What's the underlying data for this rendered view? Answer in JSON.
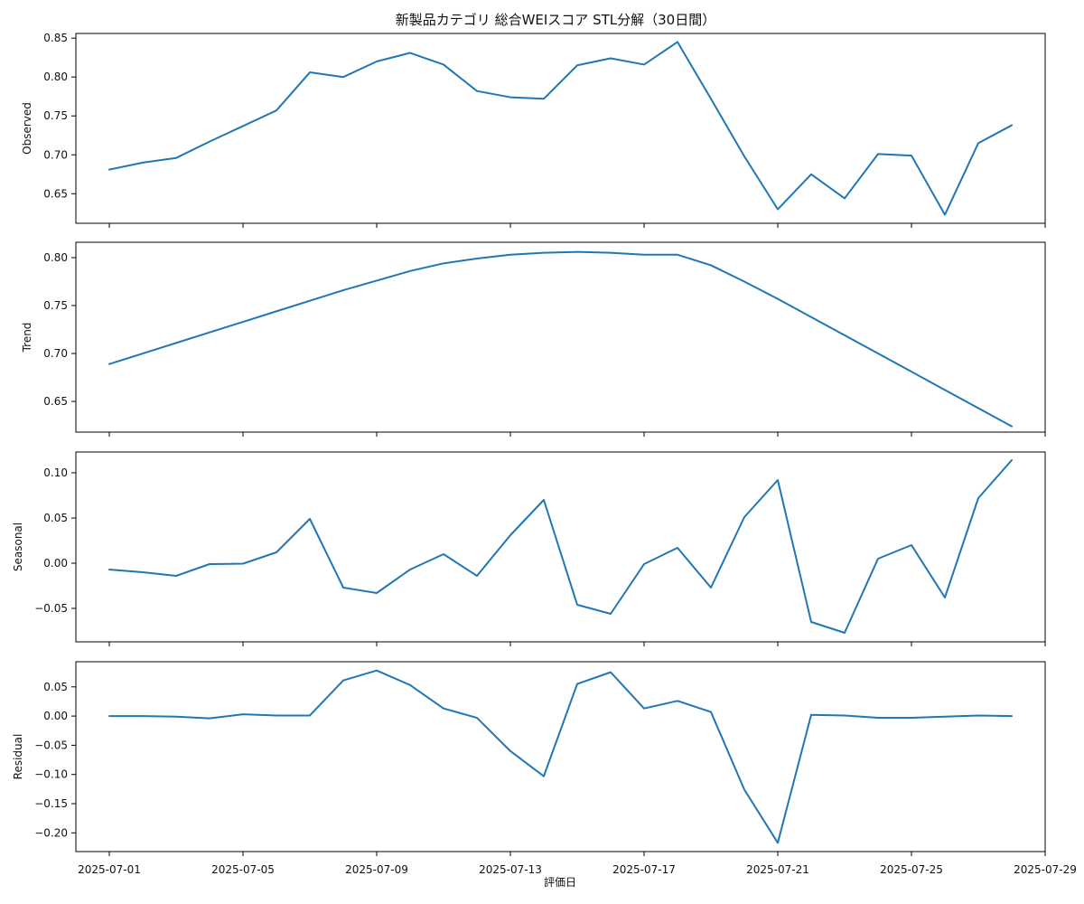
{
  "figure": {
    "title": "新製品カテゴリ 総合WEIスコア STL分解（30日間）",
    "xlabel": "評価日",
    "line_color": "#1f77b4",
    "x_ticks": [
      "2025-07-01",
      "2025-07-05",
      "2025-07-09",
      "2025-07-13",
      "2025-07-17",
      "2025-07-21",
      "2025-07-25",
      "2025-07-29"
    ]
  },
  "chart_data": [
    {
      "type": "line",
      "title": "",
      "xlabel": "評価日",
      "ylabel": "Observed",
      "xlim": [
        "2025-06-30",
        "2025-07-29"
      ],
      "ylim": [
        0.612,
        0.856
      ],
      "x_ticks": [
        "2025-07-01",
        "2025-07-05",
        "2025-07-09",
        "2025-07-13",
        "2025-07-17",
        "2025-07-21",
        "2025-07-25",
        "2025-07-29"
      ],
      "y_ticks": [
        "0.65",
        "0.70",
        "0.75",
        "0.80",
        "0.85"
      ],
      "grid": false,
      "x": [
        "2025-07-01",
        "2025-07-02",
        "2025-07-03",
        "2025-07-04",
        "2025-07-05",
        "2025-07-06",
        "2025-07-07",
        "2025-07-08",
        "2025-07-09",
        "2025-07-10",
        "2025-07-11",
        "2025-07-12",
        "2025-07-13",
        "2025-07-14",
        "2025-07-15",
        "2025-07-16",
        "2025-07-17",
        "2025-07-18",
        "2025-07-19",
        "2025-07-20",
        "2025-07-21",
        "2025-07-22",
        "2025-07-23",
        "2025-07-24",
        "2025-07-25",
        "2025-07-26",
        "2025-07-27",
        "2025-07-28"
      ],
      "series": [
        {
          "values": [
            0.681,
            0.69,
            0.696,
            0.717,
            0.737,
            0.757,
            0.806,
            0.8,
            0.82,
            0.831,
            0.816,
            0.782,
            0.774,
            0.772,
            0.815,
            0.824,
            0.816,
            0.845,
            0.772,
            0.698,
            0.63,
            0.675,
            0.644,
            0.701,
            0.699,
            0.623,
            0.715,
            0.738
          ]
        }
      ]
    },
    {
      "type": "line",
      "title": "",
      "xlabel": "",
      "ylabel": "Trend",
      "xlim": [
        "2025-06-30",
        "2025-07-29"
      ],
      "ylim": [
        0.618,
        0.816
      ],
      "x_ticks": [
        "2025-07-01",
        "2025-07-05",
        "2025-07-09",
        "2025-07-13",
        "2025-07-17",
        "2025-07-21",
        "2025-07-25",
        "2025-07-29"
      ],
      "y_ticks": [
        "0.65",
        "0.70",
        "0.75",
        "0.80"
      ],
      "grid": false,
      "x": [
        "2025-07-01",
        "2025-07-02",
        "2025-07-03",
        "2025-07-04",
        "2025-07-05",
        "2025-07-06",
        "2025-07-07",
        "2025-07-08",
        "2025-07-09",
        "2025-07-10",
        "2025-07-11",
        "2025-07-12",
        "2025-07-13",
        "2025-07-14",
        "2025-07-15",
        "2025-07-16",
        "2025-07-17",
        "2025-07-18",
        "2025-07-19",
        "2025-07-20",
        "2025-07-21",
        "2025-07-22",
        "2025-07-23",
        "2025-07-24",
        "2025-07-25",
        "2025-07-26",
        "2025-07-27",
        "2025-07-28"
      ],
      "series": [
        {
          "values": [
            0.689,
            0.7,
            0.711,
            0.722,
            0.733,
            0.744,
            0.755,
            0.766,
            0.776,
            0.786,
            0.794,
            0.799,
            0.803,
            0.805,
            0.806,
            0.805,
            0.803,
            0.803,
            0.792,
            0.775,
            0.757,
            0.738,
            0.719,
            0.7,
            0.681,
            0.662,
            0.643,
            0.624
          ]
        }
      ]
    },
    {
      "type": "line",
      "title": "",
      "xlabel": "",
      "ylabel": "Seasonal",
      "xlim": [
        "2025-06-30",
        "2025-07-29"
      ],
      "ylim": [
        -0.087,
        0.123
      ],
      "x_ticks": [
        "2025-07-01",
        "2025-07-05",
        "2025-07-09",
        "2025-07-13",
        "2025-07-17",
        "2025-07-21",
        "2025-07-25",
        "2025-07-29"
      ],
      "y_ticks": [
        "−0.05",
        "0.00",
        "0.05",
        "0.10"
      ],
      "grid": false,
      "x": [
        "2025-07-01",
        "2025-07-02",
        "2025-07-03",
        "2025-07-04",
        "2025-07-05",
        "2025-07-06",
        "2025-07-07",
        "2025-07-08",
        "2025-07-09",
        "2025-07-10",
        "2025-07-11",
        "2025-07-12",
        "2025-07-13",
        "2025-07-14",
        "2025-07-15",
        "2025-07-16",
        "2025-07-17",
        "2025-07-18",
        "2025-07-19",
        "2025-07-20",
        "2025-07-21",
        "2025-07-22",
        "2025-07-23",
        "2025-07-24",
        "2025-07-25",
        "2025-07-26",
        "2025-07-27",
        "2025-07-28"
      ],
      "series": [
        {
          "values": [
            -0.007,
            -0.01,
            -0.014,
            -0.001,
            -0.0005,
            0.012,
            0.049,
            -0.027,
            -0.033,
            -0.007,
            0.01,
            -0.014,
            0.031,
            0.07,
            -0.046,
            -0.056,
            -0.001,
            0.017,
            -0.027,
            0.051,
            0.092,
            -0.065,
            -0.077,
            0.005,
            0.02,
            -0.038,
            0.072,
            0.114
          ]
        }
      ]
    },
    {
      "type": "line",
      "title": "",
      "xlabel": "評価日",
      "ylabel": "Residual",
      "xlim": [
        "2025-06-30",
        "2025-07-29"
      ],
      "ylim": [
        -0.232,
        0.093
      ],
      "x_ticks": [
        "2025-07-01",
        "2025-07-05",
        "2025-07-09",
        "2025-07-13",
        "2025-07-17",
        "2025-07-21",
        "2025-07-25",
        "2025-07-29"
      ],
      "y_ticks": [
        "−0.20",
        "−0.15",
        "−0.10",
        "−0.05",
        "0.00",
        "0.05"
      ],
      "grid": false,
      "x": [
        "2025-07-01",
        "2025-07-02",
        "2025-07-03",
        "2025-07-04",
        "2025-07-05",
        "2025-07-06",
        "2025-07-07",
        "2025-07-08",
        "2025-07-09",
        "2025-07-10",
        "2025-07-11",
        "2025-07-12",
        "2025-07-13",
        "2025-07-14",
        "2025-07-15",
        "2025-07-16",
        "2025-07-17",
        "2025-07-18",
        "2025-07-19",
        "2025-07-20",
        "2025-07-21",
        "2025-07-22",
        "2025-07-23",
        "2025-07-24",
        "2025-07-25",
        "2025-07-26",
        "2025-07-27",
        "2025-07-28"
      ],
      "series": [
        {
          "values": [
            0.0,
            0.0,
            -0.001,
            -0.004,
            0.003,
            0.001,
            0.001,
            0.061,
            0.078,
            0.053,
            0.013,
            -0.003,
            -0.06,
            -0.103,
            0.055,
            0.075,
            0.013,
            0.026,
            0.007,
            -0.126,
            -0.217,
            0.002,
            0.001,
            -0.003,
            -0.003,
            -0.001,
            0.001,
            0.0
          ]
        }
      ]
    }
  ]
}
